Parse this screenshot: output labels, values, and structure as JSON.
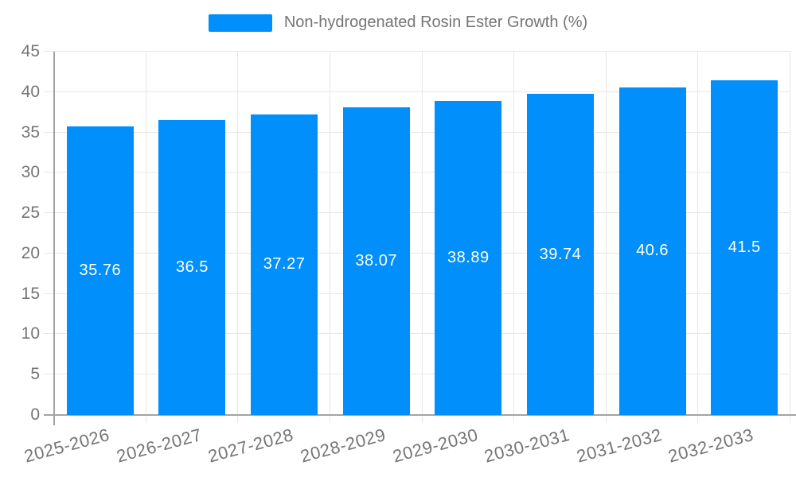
{
  "chart_data": {
    "type": "bar",
    "title": "",
    "categories": [
      "2025-2026",
      "2026-2027",
      "2027-2028",
      "2028-2029",
      "2029-2030",
      "2030-2031",
      "2031-2032",
      "2032-2033"
    ],
    "series": [
      {
        "name": "Non-hydrogenated Rosin Ester Growth (%)",
        "values": [
          35.76,
          36.5,
          37.27,
          38.07,
          38.89,
          39.74,
          40.6,
          41.5
        ]
      }
    ],
    "value_labels": [
      "35.76",
      "36.5",
      "37.27",
      "38.07",
      "38.89",
      "39.74",
      "40.6",
      "41.5"
    ],
    "xlabel": "",
    "ylabel": "",
    "ylim": [
      0,
      45
    ],
    "yticks": [
      0,
      5,
      10,
      15,
      20,
      25,
      30,
      35,
      40,
      45
    ],
    "grid": true,
    "legend_position": "top",
    "colors": {
      "bar": "#008FFB",
      "grid": "#e7e7e7",
      "axis": "#a3a3a3",
      "label": "#757575",
      "value_text": "#ffffff",
      "background": "#ffffff"
    }
  }
}
